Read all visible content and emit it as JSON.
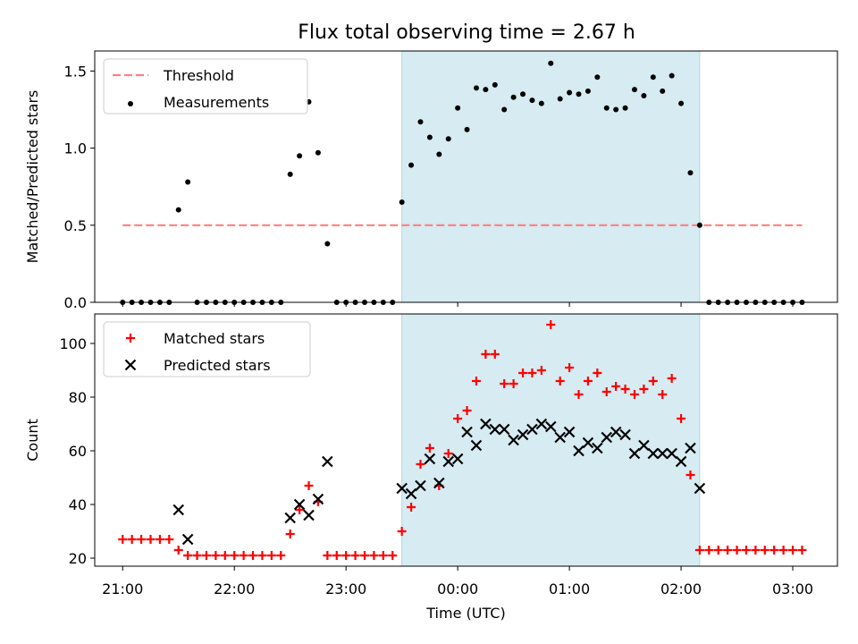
{
  "figure": {
    "title": "Flux total observing time = 2.67 h"
  },
  "colors": {
    "highlight": "#add8e6",
    "threshold": "#ff7f7f",
    "measurement": "#000000",
    "matched": "#ff0000",
    "predicted": "#000000"
  },
  "chart_data": [
    {
      "type": "scatter",
      "ylabel": "Matched/Predicted stars",
      "ylim": [
        0,
        1.63
      ],
      "yticks": [
        "0.0",
        "0.5",
        "1.0",
        "1.5"
      ],
      "xlim": [
        "20:45",
        "03:24"
      ],
      "highlight_span": [
        "23:30",
        "02:10"
      ],
      "legend": {
        "placement": "upper-left",
        "entries": [
          "Threshold",
          "Measurements"
        ]
      },
      "series": [
        {
          "name": "Threshold",
          "kind": "line-dashed",
          "x": [
            "21:00",
            "03:05"
          ],
          "y": [
            0.5,
            0.5
          ]
        },
        {
          "name": "Measurements",
          "kind": "point",
          "x": [
            "21:00",
            "21:05",
            "21:10",
            "21:15",
            "21:20",
            "21:25",
            "21:30",
            "21:35",
            "21:40",
            "21:45",
            "21:50",
            "21:55",
            "22:00",
            "22:05",
            "22:10",
            "22:15",
            "22:20",
            "22:25",
            "22:30",
            "22:35",
            "22:40",
            "22:45",
            "22:50",
            "22:55",
            "23:00",
            "23:05",
            "23:10",
            "23:15",
            "23:20",
            "23:25",
            "23:30",
            "23:35",
            "23:40",
            "23:45",
            "23:50",
            "23:55",
            "00:00",
            "00:05",
            "00:10",
            "00:15",
            "00:20",
            "00:25",
            "00:30",
            "00:35",
            "00:40",
            "00:45",
            "00:50",
            "00:55",
            "01:00",
            "01:05",
            "01:10",
            "01:15",
            "01:20",
            "01:25",
            "01:30",
            "01:35",
            "01:40",
            "01:45",
            "01:50",
            "01:55",
            "02:00",
            "02:05",
            "02:10",
            "02:15",
            "02:20",
            "02:25",
            "02:30",
            "02:35",
            "02:40",
            "02:45",
            "02:50",
            "02:55",
            "03:00",
            "03:05"
          ],
          "y": [
            0,
            0,
            0,
            0,
            0,
            0,
            0.6,
            0.78,
            0,
            0,
            0,
            0,
            0,
            0,
            0,
            0,
            0,
            0,
            0.83,
            0.95,
            1.3,
            0.97,
            0.38,
            0,
            0,
            0,
            0,
            0,
            0,
            0,
            0.65,
            0.89,
            1.17,
            1.07,
            0.96,
            1.06,
            1.26,
            1.12,
            1.39,
            1.38,
            1.41,
            1.25,
            1.33,
            1.35,
            1.31,
            1.29,
            1.55,
            1.32,
            1.36,
            1.35,
            1.37,
            1.46,
            1.26,
            1.25,
            1.26,
            1.38,
            1.34,
            1.46,
            1.37,
            1.47,
            1.29,
            0.84,
            0.5,
            0,
            0,
            0,
            0,
            0,
            0,
            0,
            0,
            0,
            0,
            0
          ]
        }
      ]
    },
    {
      "type": "scatter",
      "xlabel": "Time (UTC)",
      "ylabel": "Count",
      "ylim": [
        17,
        111
      ],
      "yticks": [
        "20",
        "40",
        "60",
        "80",
        "100"
      ],
      "xlim": [
        "20:45",
        "03:24"
      ],
      "xticks": [
        "21:00",
        "22:00",
        "23:00",
        "00:00",
        "01:00",
        "02:00",
        "03:00"
      ],
      "highlight_span": [
        "23:30",
        "02:10"
      ],
      "legend": {
        "placement": "upper-left",
        "entries": [
          "Matched stars",
          "Predicted stars"
        ]
      },
      "series": [
        {
          "name": "Matched stars",
          "marker": "plus",
          "x": [
            "21:00",
            "21:05",
            "21:10",
            "21:15",
            "21:20",
            "21:25",
            "21:30",
            "21:35",
            "21:40",
            "21:45",
            "21:50",
            "21:55",
            "22:00",
            "22:05",
            "22:10",
            "22:15",
            "22:20",
            "22:25",
            "22:30",
            "22:35",
            "22:40",
            "22:45",
            "22:50",
            "22:55",
            "23:00",
            "23:05",
            "23:10",
            "23:15",
            "23:20",
            "23:25",
            "23:30",
            "23:35",
            "23:40",
            "23:45",
            "23:50",
            "23:55",
            "00:00",
            "00:05",
            "00:10",
            "00:15",
            "00:20",
            "00:25",
            "00:30",
            "00:35",
            "00:40",
            "00:45",
            "00:50",
            "00:55",
            "01:00",
            "01:05",
            "01:10",
            "01:15",
            "01:20",
            "01:25",
            "01:30",
            "01:35",
            "01:40",
            "01:45",
            "01:50",
            "01:55",
            "02:00",
            "02:05",
            "02:10",
            "02:15",
            "02:20",
            "02:25",
            "02:30",
            "02:35",
            "02:40",
            "02:45",
            "02:50",
            "02:55",
            "03:00",
            "03:05"
          ],
          "y": [
            27,
            27,
            27,
            27,
            27,
            27,
            23,
            21,
            21,
            21,
            21,
            21,
            21,
            21,
            21,
            21,
            21,
            21,
            29,
            38,
            47,
            41,
            21,
            21,
            21,
            21,
            21,
            21,
            21,
            21,
            30,
            39,
            55,
            61,
            47,
            59,
            72,
            75,
            86,
            96,
            96,
            85,
            85,
            89,
            89,
            90,
            107,
            86,
            91,
            81,
            86,
            89,
            82,
            84,
            83,
            81,
            83,
            86,
            81,
            87,
            72,
            51,
            23,
            23,
            23,
            23,
            23,
            23,
            23,
            23,
            23,
            23,
            23,
            23
          ]
        },
        {
          "name": "Predicted stars",
          "marker": "x",
          "x": [
            "21:30",
            "21:35",
            "22:30",
            "22:35",
            "22:40",
            "22:45",
            "22:50",
            "23:30",
            "23:35",
            "23:40",
            "23:45",
            "23:50",
            "23:55",
            "00:00",
            "00:05",
            "00:10",
            "00:15",
            "00:20",
            "00:25",
            "00:30",
            "00:35",
            "00:40",
            "00:45",
            "00:50",
            "00:55",
            "01:00",
            "01:05",
            "01:10",
            "01:15",
            "01:20",
            "01:25",
            "01:30",
            "01:35",
            "01:40",
            "01:45",
            "01:50",
            "01:55",
            "02:00",
            "02:05",
            "02:10"
          ],
          "y": [
            38,
            27,
            35,
            40,
            36,
            42,
            56,
            46,
            44,
            47,
            57,
            48,
            56,
            57,
            67,
            62,
            70,
            68,
            68,
            64,
            66,
            68,
            70,
            69,
            65,
            67,
            60,
            63,
            61,
            65,
            67,
            66,
            59,
            62,
            59,
            59,
            59,
            56,
            61,
            46
          ]
        }
      ]
    }
  ]
}
